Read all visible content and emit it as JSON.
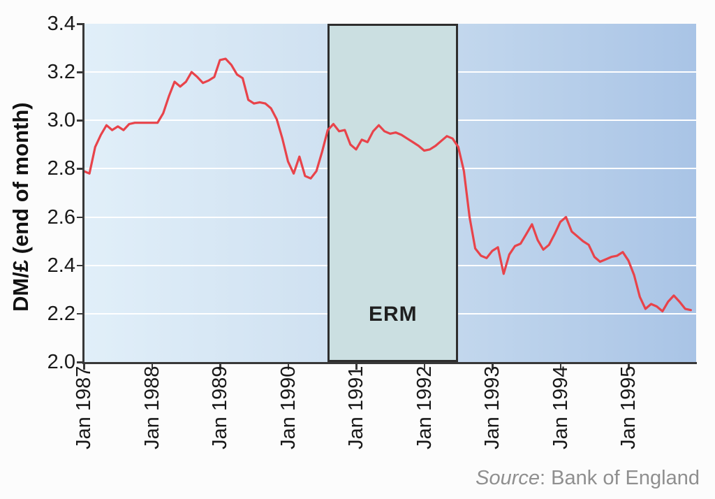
{
  "chart_data": {
    "type": "line",
    "title": "",
    "ylabel": "DM/£ (end of month)",
    "xlabel": "",
    "ylim": [
      2.0,
      3.4
    ],
    "yticks": [
      3.4,
      3.2,
      3.0,
      2.8,
      2.6,
      2.4,
      2.2,
      2.0
    ],
    "xtick_labels": [
      "Jan 1987",
      "Jan 1988",
      "Jan 1989",
      "Jan 1990",
      "Jan 1991",
      "Jan 1992",
      "Jan 1993",
      "Jan 1994",
      "Jan 1995"
    ],
    "x_unit": "month",
    "x_start": "Jan 1987",
    "grid": "horizontal-white",
    "legend_position": "none",
    "series": [
      {
        "name": "DM/£ (end of month)",
        "color": "#e8434a",
        "values": [
          2.79,
          2.78,
          2.89,
          2.94,
          2.98,
          2.96,
          2.975,
          2.96,
          2.985,
          2.99,
          2.99,
          2.99,
          2.99,
          2.99,
          3.03,
          3.1,
          3.16,
          3.14,
          3.16,
          3.2,
          3.18,
          3.155,
          3.165,
          3.18,
          3.25,
          3.255,
          3.23,
          3.19,
          3.175,
          3.085,
          3.07,
          3.075,
          3.07,
          3.05,
          3.005,
          2.925,
          2.83,
          2.78,
          2.85,
          2.77,
          2.76,
          2.79,
          2.87,
          2.96,
          2.985,
          2.955,
          2.96,
          2.9,
          2.88,
          2.92,
          2.91,
          2.955,
          2.98,
          2.955,
          2.945,
          2.95,
          2.94,
          2.925,
          2.91,
          2.895,
          2.875,
          2.88,
          2.895,
          2.915,
          2.935,
          2.925,
          2.89,
          2.79,
          2.6,
          2.47,
          2.44,
          2.43,
          2.46,
          2.475,
          2.365,
          2.445,
          2.48,
          2.49,
          2.53,
          2.57,
          2.505,
          2.465,
          2.485,
          2.53,
          2.58,
          2.6,
          2.54,
          2.52,
          2.5,
          2.485,
          2.435,
          2.415,
          2.425,
          2.435,
          2.44,
          2.455,
          2.42,
          2.36,
          2.27,
          2.22,
          2.24,
          2.23,
          2.21,
          2.25,
          2.275,
          2.25,
          2.22,
          2.215
        ]
      }
    ],
    "annotation": {
      "label": "ERM",
      "start_month_index": 43,
      "end_month_index": 66,
      "fill": "#cbdfe1",
      "border": "#2e2e2e"
    }
  },
  "source": {
    "italic": "Source",
    "rest": ": Bank of England"
  },
  "colors": {
    "plot_bg_left": "#e1eff9",
    "plot_bg_mid": "#cddff0",
    "plot_bg_right": "#a9c4e6",
    "grid": "#ffffff",
    "axis": "#383838",
    "tick_label": "#191919",
    "line": "#e8434a",
    "erm_fill": "#cbdfe1",
    "source_text": "#8f8f8f"
  }
}
